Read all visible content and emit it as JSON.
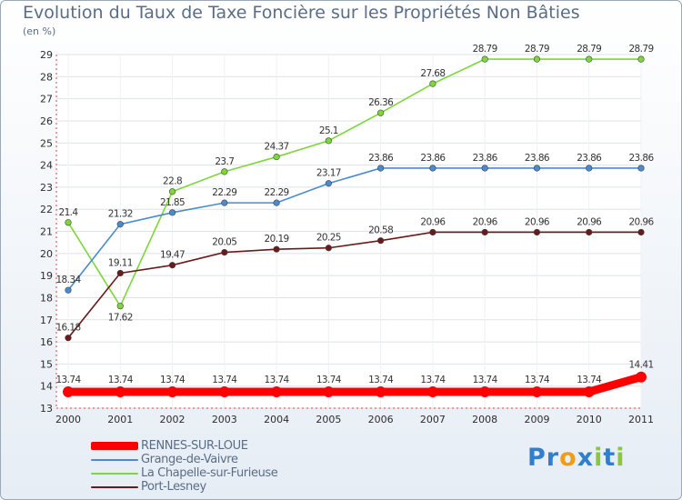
{
  "chart_data": {
    "type": "line",
    "title": "Evolution du Taux de Taxe Foncière sur les Propriétés Non Bâties",
    "ylabel": "(en %)",
    "xlabel": "",
    "ylim": [
      13,
      29
    ],
    "yticks": [
      13,
      14,
      15,
      16,
      17,
      18,
      19,
      20,
      21,
      22,
      23,
      24,
      25,
      26,
      27,
      28,
      29
    ],
    "categories": [
      "2000",
      "2001",
      "2002",
      "2003",
      "2004",
      "2005",
      "2006",
      "2007",
      "2008",
      "2009",
      "2010",
      "2011"
    ],
    "series": [
      {
        "name": "La Chapelle-sur-Furieuse",
        "color": "#7dd63a",
        "labels_below_indices": [
          1
        ],
        "values": [
          21.4,
          17.62,
          22.8,
          23.7,
          24.37,
          25.1,
          26.36,
          27.68,
          28.79,
          28.79,
          28.79,
          28.79
        ]
      },
      {
        "name": "Grange-de-Vaivre",
        "color": "#4a8bcf",
        "labels_below_indices": [],
        "values": [
          18.34,
          21.32,
          21.85,
          22.29,
          22.29,
          23.17,
          23.86,
          23.86,
          23.86,
          23.86,
          23.86,
          23.86
        ]
      },
      {
        "name": "Port-Lesney",
        "color": "#6b1a1a",
        "labels_below_indices": [],
        "values": [
          16.18,
          19.11,
          19.47,
          20.05,
          20.19,
          20.25,
          20.58,
          20.96,
          20.96,
          20.96,
          20.96,
          20.96
        ]
      },
      {
        "name": "RENNES-SUR-LOUE",
        "color": "#ff0000",
        "highlight": true,
        "labels_below_indices": [],
        "values": [
          13.74,
          13.74,
          13.74,
          13.74,
          13.74,
          13.74,
          13.74,
          13.74,
          13.74,
          13.74,
          13.74,
          14.41
        ]
      }
    ]
  },
  "legend": {
    "items": [
      {
        "name": "RENNES-SUR-LOUE",
        "color": "#ff0000",
        "thickness": "thick"
      },
      {
        "name": "Grange-de-Vaivre",
        "color": "#4a8bcf",
        "thickness": "thin"
      },
      {
        "name": "La Chapelle-sur-Furieuse",
        "color": "#7dd63a",
        "thickness": "thin"
      },
      {
        "name": "Port-Lesney",
        "color": "#6b1a1a",
        "thickness": "thin"
      }
    ]
  },
  "brand": {
    "letters": [
      "P",
      "r",
      "o",
      "x",
      "i",
      "t",
      "i"
    ],
    "colors": [
      "#2f7fd0",
      "#2f7fd0",
      "#f39c12",
      "#2f7fd0",
      "#8cc63f",
      "#2f7fd0",
      "#8cc63f"
    ]
  }
}
